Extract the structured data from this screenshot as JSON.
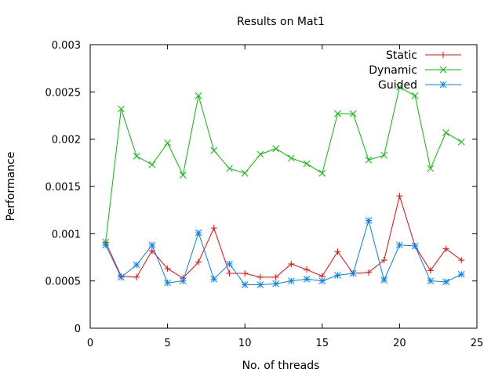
{
  "chart_data": {
    "type": "line",
    "title": "Results on Mat1",
    "xlabel": "No. of threads",
    "ylabel": "Performance",
    "xlim": [
      0,
      25
    ],
    "ylim": [
      0,
      0.003
    ],
    "x_ticks": [
      "0",
      "5",
      "10",
      "15",
      "20",
      "25"
    ],
    "y_ticks": [
      "0",
      "0.0005",
      "0.001",
      "0.0015",
      "0.002",
      "0.0025",
      "0.003"
    ],
    "legend_position": "top-right",
    "grid": false,
    "x": [
      1,
      2,
      3,
      4,
      5,
      6,
      7,
      8,
      9,
      10,
      11,
      12,
      13,
      14,
      15,
      16,
      17,
      18,
      19,
      20,
      21,
      22,
      23,
      24
    ],
    "series": [
      {
        "name": "Static",
        "color": "#ff0000",
        "marker": "plus",
        "values": [
          0.00091,
          0.00055,
          0.00054,
          0.00082,
          0.00063,
          0.00053,
          0.0007,
          0.00106,
          0.00058,
          0.00058,
          0.00054,
          0.00054,
          0.00068,
          0.00062,
          0.00055,
          0.00081,
          0.00058,
          0.00059,
          0.00072,
          0.0014,
          0.00087,
          0.00061,
          0.00084,
          0.00072
        ]
      },
      {
        "name": "Dynamic",
        "color": "#00c000",
        "marker": "cross",
        "values": [
          0.00091,
          0.00232,
          0.00182,
          0.00173,
          0.00196,
          0.00162,
          0.00246,
          0.00188,
          0.00169,
          0.00164,
          0.00184,
          0.0019,
          0.0018,
          0.00174,
          0.00164,
          0.00227,
          0.00227,
          0.00178,
          0.00183,
          0.00255,
          0.00246,
          0.00169,
          0.00207,
          0.00197
        ]
      },
      {
        "name": "Guided",
        "color": "#0080ff",
        "marker": "star",
        "values": [
          0.00088,
          0.00054,
          0.00067,
          0.00088,
          0.00048,
          0.0005,
          0.00101,
          0.00052,
          0.00068,
          0.00046,
          0.00046,
          0.00047,
          0.0005,
          0.00052,
          0.0005,
          0.00056,
          0.00058,
          0.00114,
          0.00051,
          0.00088,
          0.00087,
          0.0005,
          0.00049,
          0.00057
        ]
      }
    ]
  }
}
